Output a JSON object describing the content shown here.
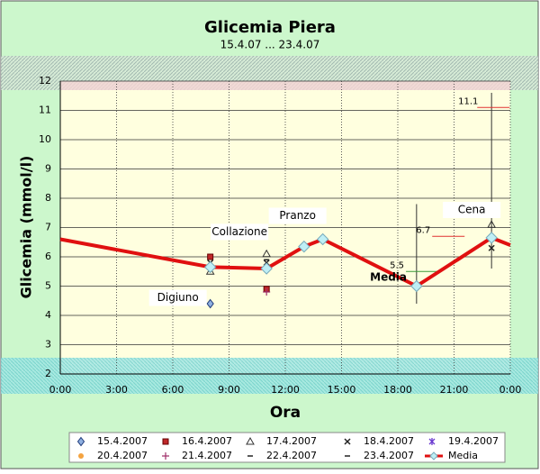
{
  "chart_data": {
    "type": "scatter",
    "title": "Glicemia Piera",
    "subtitle": "15.4.07 ... 23.4.07",
    "x_label": "Ora",
    "y_label": "Glicemia (mmol/l)",
    "xlim": [
      0,
      24
    ],
    "xticks": [
      {
        "value": 0,
        "label": "0:00"
      },
      {
        "value": 3,
        "label": "3:00"
      },
      {
        "value": 6,
        "label": "6:00"
      },
      {
        "value": 9,
        "label": "9:00"
      },
      {
        "value": 12,
        "label": "12:00"
      },
      {
        "value": 15,
        "label": "15:00"
      },
      {
        "value": 18,
        "label": "18:00"
      },
      {
        "value": 21,
        "label": "21:00"
      },
      {
        "value": 24,
        "label": "0:00"
      }
    ],
    "ylim": [
      2,
      12
    ],
    "yticks": [
      2,
      3,
      4,
      5,
      6,
      7,
      8,
      9,
      10,
      11,
      12
    ],
    "grid": true,
    "series": [
      {
        "name": "15.4.2007",
        "marker": "diamond",
        "color": "#1f3a7a",
        "x": [
          8
        ],
        "values": [
          4.4
        ]
      },
      {
        "name": "16.4.2007",
        "marker": "square",
        "color": "#c0282a",
        "x": [
          8,
          11
        ],
        "values": [
          6.0,
          4.9
        ]
      },
      {
        "name": "17.4.2007",
        "marker": "triangle",
        "color": "#333333",
        "x": [
          8,
          11,
          23
        ],
        "values": [
          5.5,
          6.1,
          7.1
        ]
      },
      {
        "name": "18.4.2007",
        "marker": "cross",
        "color": "#222222",
        "x": [
          8,
          11,
          23
        ],
        "values": [
          5.8,
          5.8,
          6.3
        ]
      },
      {
        "name": "19.4.2007",
        "marker": "star",
        "color": "#6a3ad0",
        "x": [],
        "values": []
      },
      {
        "name": "20.4.2007",
        "marker": "circle",
        "color": "#f4a340",
        "x": [],
        "values": []
      },
      {
        "name": "21.4.2007",
        "marker": "plus",
        "color": "#a0306a",
        "x": [
          11
        ],
        "values": [
          4.8
        ]
      },
      {
        "name": "22.4.2007",
        "marker": "dash",
        "color": "#222222",
        "x": [
          8
        ],
        "values": [
          5.7
        ]
      },
      {
        "name": "23.4.2007",
        "marker": "dash",
        "color": "#222222",
        "x": [
          11
        ],
        "values": [
          5.9
        ]
      },
      {
        "name": "Media",
        "marker": "line",
        "color": "#e01010",
        "x": [
          0,
          8,
          11,
          13,
          14,
          19,
          23,
          24
        ],
        "values": [
          6.6,
          5.65,
          5.6,
          6.35,
          6.6,
          5.0,
          6.65,
          6.4
        ]
      }
    ],
    "annotations": [
      {
        "text": "Digiuno",
        "x": 8
      },
      {
        "text": "Collazione",
        "x": 11
      },
      {
        "text": "Pranzo",
        "x": 14
      },
      {
        "text": "Cena",
        "x": 23
      },
      {
        "text": "Media",
        "x": 17.5
      }
    ],
    "ranges": [
      {
        "x": 19,
        "low": 4.4,
        "high": 7.8
      },
      {
        "x": 23,
        "low": 5.6,
        "high": 11.6
      }
    ],
    "levels": [
      {
        "x": 20.7,
        "value": 6.7,
        "color": "#e03030"
      },
      {
        "x": 19.3,
        "value": 5.5,
        "color": "#3a9a3a"
      },
      {
        "x": 23.1,
        "value": 11.1,
        "color": "#e03030"
      }
    ]
  }
}
